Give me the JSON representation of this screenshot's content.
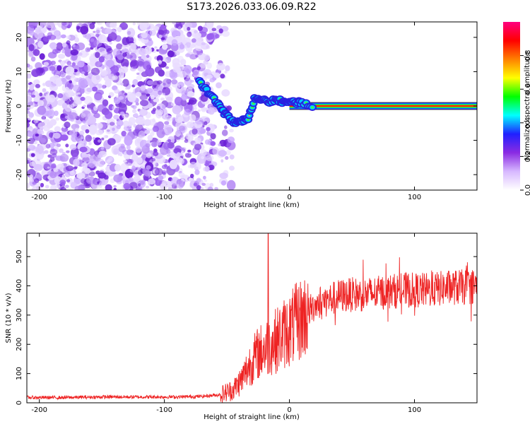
{
  "title": "S173.2026.033.06.09.R22",
  "chart_data": [
    {
      "type": "heatmap",
      "xlabel": "Height of straight line (km)",
      "ylabel": "Frequency (Hz)",
      "xlim": [
        -210,
        150
      ],
      "ylim": [
        -24.5,
        24.5
      ],
      "xticks": [
        -200,
        -100,
        0,
        100
      ],
      "yticks": [
        -20,
        -10,
        0,
        10,
        20
      ],
      "colorbar": {
        "label": "Normalized spectral amplitude",
        "range": [
          0,
          1
        ],
        "ticks": [
          "0.0",
          "0.2",
          "0.4",
          "0.6",
          "0.8"
        ],
        "colors": [
          "#ffffff",
          "#d7b8ff",
          "#8a2be2",
          "#2020ff",
          "#00ffff",
          "#00ff00",
          "#ffff00",
          "#ff8000",
          "#ff0000",
          "#ff007f"
        ]
      },
      "features": [
        {
          "name": "noise",
          "x_range": [
            -210,
            -60
          ],
          "freq_range": [
            -24.5,
            24.5
          ],
          "amplitude": 0.08
        },
        {
          "name": "signal-track",
          "x": [
            -72,
            -65,
            -58,
            -52,
            -47,
            -42,
            -37,
            -33,
            -28,
            -22,
            -16,
            -10,
            -5,
            0,
            5,
            10,
            20
          ],
          "freq": [
            7,
            4,
            1,
            -2,
            -4,
            -5,
            -4,
            -4,
            2,
            2,
            1,
            2,
            1,
            1,
            1,
            1,
            0
          ],
          "amplitude": 0.35
        },
        {
          "name": "carrier-line",
          "x_range": [
            0,
            150
          ],
          "freq": 0,
          "amplitude": 0.95
        }
      ]
    },
    {
      "type": "line",
      "xlabel": "Height of straight line (km)",
      "ylabel": "SNR (10 * v/v)",
      "xlim": [
        -210,
        150
      ],
      "ylim": [
        0,
        580
      ],
      "xticks": [
        -200,
        -100,
        0,
        100
      ],
      "yticks": [
        0,
        100,
        200,
        300,
        400,
        500
      ],
      "color": "#ee2222",
      "x": [
        -210,
        -180,
        -150,
        -120,
        -90,
        -70,
        -55,
        -45,
        -38,
        -32,
        -25,
        -18,
        -10,
        -5,
        0,
        5,
        10,
        15,
        20,
        25,
        30,
        40,
        50,
        60,
        70,
        80,
        90,
        100,
        110,
        120,
        130,
        140,
        150
      ],
      "y": [
        18,
        18,
        20,
        20,
        20,
        22,
        28,
        45,
        80,
        130,
        170,
        190,
        215,
        235,
        250,
        270,
        290,
        310,
        330,
        345,
        350,
        365,
        370,
        370,
        375,
        380,
        385,
        385,
        385,
        390,
        395,
        395,
        400
      ],
      "annotations": [
        {
          "x": -17,
          "y": 580,
          "label": "spike"
        }
      ]
    }
  ]
}
